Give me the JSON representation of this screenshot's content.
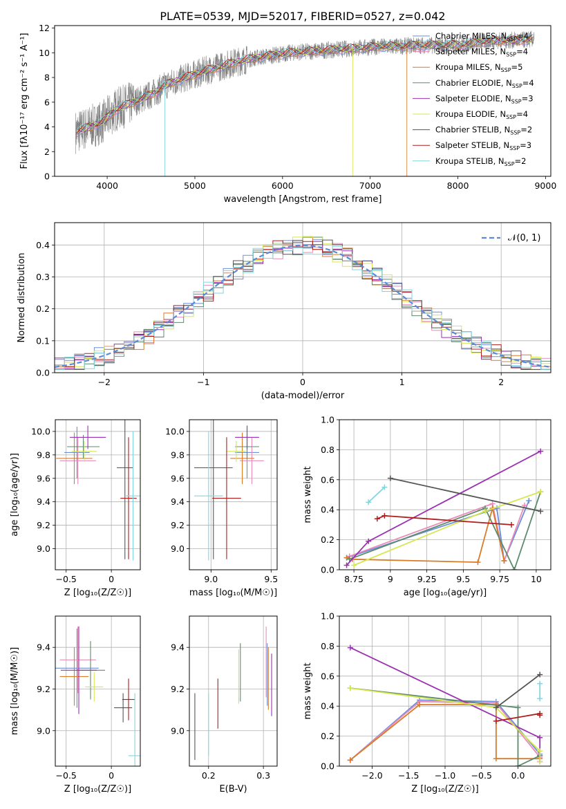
{
  "figure_title": "PLATE=0539, MJD=52017, FIBERID=0527, z=0.042",
  "colors": {
    "chabrier_miles": "#6a8edb",
    "salpeter_miles": "#e98ab8",
    "kroupa_miles": "#d87c28",
    "chabrier_elodie": "#5d8a6c",
    "salpeter_elodie": "#9a31b0",
    "kroupa_elodie": "#d6e74e",
    "chabrier_stelib": "#555555",
    "salpeter_stelib": "#b01c1c",
    "kroupa_stelib": "#7fd6e0",
    "data": "#808080",
    "normal_curve": "#5b8ad6"
  },
  "chart_data": [
    {
      "id": "spectrum",
      "type": "line",
      "xlabel": "wavelength [Angstrom, rest frame]",
      "ylabel": "Flux [fλ10⁻¹⁷ erg cm⁻² s⁻¹ A⁻¹]",
      "xlim": [
        3400,
        9060
      ],
      "ylim": [
        0,
        12.2
      ],
      "xticks": [
        4000,
        5000,
        6000,
        7000,
        8000,
        9000
      ],
      "yticks": [
        0,
        2,
        4,
        6,
        8,
        10,
        12
      ],
      "grid": false,
      "legend_position": "top-right",
      "series": [
        {
          "name": "Chabrier MILES, N",
          "sub": "SSP",
          "suffix": "=4",
          "color": "chabrier_miles"
        },
        {
          "name": "Salpeter MILES, N",
          "sub": "SSP",
          "suffix": "=4",
          "color": "salpeter_miles"
        },
        {
          "name": "Kroupa MILES, N",
          "sub": "SSP",
          "suffix": "=5",
          "color": "kroupa_miles"
        },
        {
          "name": "Chabrier ELODIE, N",
          "sub": "SSP",
          "suffix": "=4",
          "color": "chabrier_elodie"
        },
        {
          "name": "Salpeter ELODIE, N",
          "sub": "SSP",
          "suffix": "=3",
          "color": "salpeter_elodie"
        },
        {
          "name": "Kroupa ELODIE, N",
          "sub": "SSP",
          "suffix": "=4",
          "color": "kroupa_elodie"
        },
        {
          "name": "Chabrier STELIB, N",
          "sub": "SSP",
          "suffix": "=2",
          "color": "chabrier_stelib"
        },
        {
          "name": "Salpeter STELIB, N",
          "sub": "SSP",
          "suffix": "=3",
          "color": "salpeter_stelib"
        },
        {
          "name": "Kroupa STELIB, N",
          "sub": "SSP",
          "suffix": "=2",
          "color": "kroupa_stelib"
        }
      ],
      "continuum_model": {
        "x": [
          3650,
          3800,
          3950,
          4100,
          4300,
          4500,
          4700,
          4900,
          5100,
          5300,
          5500,
          5700,
          5900,
          6100,
          6300,
          6500,
          6700,
          6900,
          7100,
          7300,
          7500,
          7700,
          7900,
          8100,
          8300,
          8500,
          8700,
          8850
        ],
        "y": [
          3.6,
          4.0,
          4.4,
          5.4,
          6.0,
          6.6,
          7.5,
          8.0,
          8.5,
          8.9,
          9.3,
          9.6,
          9.8,
          10.0,
          10.1,
          10.2,
          10.3,
          10.4,
          10.5,
          10.5,
          10.6,
          10.6,
          10.6,
          10.7,
          10.9,
          11.0,
          11.0,
          11.1
        ]
      },
      "model_dropouts": [
        {
          "series": "kroupa_stelib",
          "x": 4660
        },
        {
          "series": "kroupa_elodie",
          "x": 6800
        },
        {
          "series": "kroupa_miles",
          "x": 7420
        }
      ]
    },
    {
      "id": "residuals",
      "type": "line",
      "xlabel": "(data-model)/error",
      "ylabel": "Normed distribution",
      "xlim": [
        -2.5,
        2.5
      ],
      "ylim": [
        0,
        0.47
      ],
      "xticks": [
        -2,
        -1,
        0,
        1,
        2
      ],
      "yticks": [
        0.0,
        0.1,
        0.2,
        0.3,
        0.4
      ],
      "grid": true,
      "legend_position": "top-right",
      "legend_label": "𝒩(0, 1)",
      "bin_width": 0.1
    },
    {
      "id": "z_vs_age",
      "type": "scatter",
      "xlabel": "Z [log₁₀(Z/Z☉)]",
      "ylabel": "age  [log₁₀(age/yr)]",
      "xlim": [
        -0.62,
        0.32
      ],
      "ylim": [
        8.82,
        10.1
      ],
      "xticks": [
        -0.5,
        0.0
      ],
      "yticks": [
        9.0,
        9.2,
        9.4,
        9.6,
        9.8,
        10.0
      ],
      "grid": true,
      "points": [
        {
          "series": "chabrier_miles",
          "x": -0.38,
          "xerr": 0.14,
          "y": 9.82,
          "yerr": 0.22
        },
        {
          "series": "salpeter_miles",
          "x": -0.37,
          "xerr": 0.2,
          "y": 9.75,
          "yerr": 0.2
        },
        {
          "series": "kroupa_miles",
          "x": -0.41,
          "xerr": 0.2,
          "y": 9.77,
          "yerr": 0.22
        },
        {
          "series": "chabrier_elodie",
          "x": -0.31,
          "xerr": 0.18,
          "y": 9.87,
          "yerr": 0.1
        },
        {
          "series": "salpeter_elodie",
          "x": -0.26,
          "xerr": 0.2,
          "y": 9.95,
          "yerr": 0.1
        },
        {
          "series": "kroupa_elodie",
          "x": -0.3,
          "xerr": 0.14,
          "y": 9.83,
          "yerr": 0.09
        },
        {
          "series": "chabrier_stelib",
          "x": 0.15,
          "xerr": 0.09,
          "y": 9.69,
          "yerr": 0.78
        },
        {
          "series": "salpeter_stelib",
          "x": 0.19,
          "xerr": 0.09,
          "y": 9.43,
          "yerr": 0.52
        },
        {
          "series": "kroupa_stelib",
          "x": 0.24,
          "xerr": 0.09,
          "y": 9.45,
          "yerr": 0.55
        }
      ]
    },
    {
      "id": "mass_vs_age",
      "type": "scatter",
      "xlabel": "mass [log₁₀(M/M☉)]",
      "ylabel": "",
      "xlim": [
        8.82,
        9.55
      ],
      "ylim": [
        8.82,
        10.1
      ],
      "xticks": [
        9.0,
        9.5
      ],
      "yticks": [
        9.0,
        9.2,
        9.4,
        9.6,
        9.8,
        10.0
      ],
      "grid": true,
      "points": [
        {
          "series": "chabrier_miles",
          "x": 9.3,
          "xerr": 0.1,
          "y": 9.82,
          "yerr": 0.22
        },
        {
          "series": "salpeter_miles",
          "x": 9.34,
          "xerr": 0.1,
          "y": 9.75,
          "yerr": 0.2
        },
        {
          "series": "kroupa_miles",
          "x": 9.26,
          "xerr": 0.1,
          "y": 9.77,
          "yerr": 0.22
        },
        {
          "series": "chabrier_elodie",
          "x": 9.3,
          "xerr": 0.1,
          "y": 9.87,
          "yerr": 0.1
        },
        {
          "series": "salpeter_elodie",
          "x": 9.3,
          "xerr": 0.1,
          "y": 9.95,
          "yerr": 0.1
        },
        {
          "series": "kroupa_elodie",
          "x": 9.21,
          "xerr": 0.08,
          "y": 9.83,
          "yerr": 0.09
        },
        {
          "series": "chabrier_stelib",
          "x": 9.02,
          "xerr": 0.16,
          "y": 9.69,
          "yerr": 0.78
        },
        {
          "series": "salpeter_stelib",
          "x": 9.13,
          "xerr": 0.12,
          "y": 9.43,
          "yerr": 0.52
        },
        {
          "series": "kroupa_stelib",
          "x": 8.98,
          "xerr": 0.12,
          "y": 9.45,
          "yerr": 0.55
        }
      ]
    },
    {
      "id": "age_vs_weight",
      "type": "line",
      "xlabel": "age  [log₁₀(age/yr)]",
      "ylabel": "mass weight",
      "xlim": [
        8.65,
        10.1
      ],
      "ylim": [
        0,
        1.0
      ],
      "xticks": [
        8.75,
        9.0,
        9.25,
        9.5,
        9.75,
        10.0
      ],
      "yticks": [
        0.0,
        0.2,
        0.4,
        0.6,
        0.8,
        1.0
      ],
      "grid": true,
      "series": [
        {
          "color": "chabrier_miles",
          "x": [
            8.7,
            9.73,
            9.78,
            9.95
          ],
          "y": [
            0.08,
            0.41,
            0.06,
            0.46
          ]
        },
        {
          "color": "salpeter_miles",
          "x": [
            8.72,
            9.7,
            9.78,
            9.92
          ],
          "y": [
            0.09,
            0.44,
            0.06,
            0.43
          ]
        },
        {
          "color": "kroupa_miles",
          "x": [
            8.7,
            8.74,
            9.6,
            9.7,
            9.78
          ],
          "y": [
            0.08,
            0.07,
            0.05,
            0.41,
            0.06
          ]
        },
        {
          "color": "chabrier_elodie",
          "x": [
            8.72,
            9.65,
            9.85,
            10.03
          ],
          "y": [
            0.07,
            0.41,
            0.0,
            0.52
          ]
        },
        {
          "color": "salpeter_elodie",
          "x": [
            8.7,
            8.85,
            10.03
          ],
          "y": [
            0.03,
            0.19,
            0.79
          ]
        },
        {
          "color": "kroupa_elodie",
          "x": [
            8.75,
            9.65,
            10.03
          ],
          "y": [
            0.03,
            0.39,
            0.52
          ]
        },
        {
          "color": "chabrier_stelib",
          "x": [
            9.0,
            10.03
          ],
          "y": [
            0.61,
            0.39
          ]
        },
        {
          "color": "salpeter_stelib",
          "x": [
            8.91,
            8.96,
            9.83
          ],
          "y": [
            0.34,
            0.36,
            0.3
          ]
        },
        {
          "color": "kroupa_stelib",
          "x": [
            8.85,
            8.96
          ],
          "y": [
            0.45,
            0.55
          ]
        }
      ]
    },
    {
      "id": "z_vs_mass",
      "type": "scatter",
      "xlabel": "Z [log₁₀(Z/Z☉)]",
      "ylabel": "mass [log₁₀(M/M☉)]",
      "xlim": [
        -0.62,
        0.32
      ],
      "ylim": [
        8.83,
        9.55
      ],
      "xticks": [
        -0.5,
        0.0
      ],
      "yticks": [
        9.0,
        9.2,
        9.4
      ],
      "grid": true,
      "points": [
        {
          "series": "chabrier_miles",
          "x": -0.38,
          "xerr": 0.24,
          "y": 9.3,
          "yerr": 0.19
        },
        {
          "series": "salpeter_miles",
          "x": -0.37,
          "xerr": 0.2,
          "y": 9.34,
          "yerr": 0.16
        },
        {
          "series": "kroupa_miles",
          "x": -0.41,
          "xerr": 0.16,
          "y": 9.26,
          "yerr": 0.14
        },
        {
          "series": "chabrier_elodie",
          "x": -0.23,
          "xerr": 0.16,
          "y": 9.29,
          "yerr": 0.14
        },
        {
          "series": "salpeter_elodie",
          "x": -0.36,
          "xerr": 0.2,
          "y": 9.29,
          "yerr": 0.21
        },
        {
          "series": "kroupa_elodie",
          "x": -0.19,
          "xerr": 0.1,
          "y": 9.21,
          "yerr": 0.07
        },
        {
          "series": "chabrier_stelib",
          "x": 0.13,
          "xerr": 0.1,
          "y": 9.11,
          "yerr": 0.07
        },
        {
          "series": "salpeter_stelib",
          "x": 0.19,
          "xerr": 0.07,
          "y": 9.15,
          "yerr": 0.1
        },
        {
          "series": "kroupa_stelib",
          "x": 0.26,
          "xerr": 0.07,
          "y": 8.88,
          "yerr": 0.3
        }
      ]
    },
    {
      "id": "ebv_vs_mass",
      "type": "scatter",
      "xlabel": "E(B-V)",
      "ylabel": "",
      "xlim": [
        0.165,
        0.325
      ],
      "ylim": [
        8.83,
        9.55
      ],
      "xticks": [
        0.2,
        0.3
      ],
      "yticks": [
        9.0,
        9.2,
        9.4
      ],
      "grid": true,
      "points": [
        {
          "series": "chabrier_stelib",
          "x": 0.175,
          "y": 9.02,
          "yerr": 0.16
        },
        {
          "series": "kroupa_stelib",
          "x": 0.2,
          "y": 9.03,
          "yerr": 0.15
        },
        {
          "series": "salpeter_stelib",
          "x": 0.217,
          "y": 9.13,
          "yerr": 0.12
        },
        {
          "series": "kroupa_elodie",
          "x": 0.255,
          "y": 9.26,
          "yerr": 0.13
        },
        {
          "series": "chabrier_elodie",
          "x": 0.258,
          "y": 9.28,
          "yerr": 0.14
        },
        {
          "series": "salpeter_miles",
          "x": 0.305,
          "y": 9.33,
          "yerr": 0.17
        },
        {
          "series": "chabrier_miles",
          "x": 0.307,
          "y": 9.27,
          "yerr": 0.15
        },
        {
          "series": "kroupa_miles",
          "x": 0.309,
          "y": 9.25,
          "yerr": 0.15
        },
        {
          "series": "salpeter_elodie",
          "x": 0.315,
          "y": 9.22,
          "yerr": 0.15
        }
      ]
    },
    {
      "id": "z_vs_weight",
      "type": "line",
      "xlabel": "Z [log₁₀(Z/Z☉)]",
      "ylabel": "mass weight",
      "xlim": [
        -2.45,
        0.45
      ],
      "ylim": [
        0,
        1.0
      ],
      "xticks": [
        -2.0,
        -1.5,
        -1.0,
        -0.5,
        0.0
      ],
      "yticks": [
        0.0,
        0.2,
        0.4,
        0.6,
        0.8,
        1.0
      ],
      "grid": true,
      "series": [
        {
          "color": "chabrier_miles",
          "x": [
            -2.3,
            -1.35,
            -0.3,
            0.3
          ],
          "y": [
            0.04,
            0.44,
            0.43,
            0.08
          ]
        },
        {
          "color": "salpeter_miles",
          "x": [
            -2.3,
            -1.35,
            -0.3,
            0.3
          ],
          "y": [
            0.04,
            0.43,
            0.42,
            0.06
          ]
        },
        {
          "color": "kroupa_miles",
          "x": [
            -2.3,
            -1.35,
            -0.3,
            -0.3,
            0.3,
            0.3
          ],
          "y": [
            0.04,
            0.41,
            0.41,
            0.05,
            0.05,
            0.07
          ]
        },
        {
          "color": "chabrier_elodie",
          "x": [
            -2.3,
            0.0,
            0.0,
            0.3
          ],
          "y": [
            0.52,
            0.39,
            0.0,
            0.07
          ]
        },
        {
          "color": "salpeter_elodie",
          "x": [
            -2.3,
            0.3,
            0.3
          ],
          "y": [
            0.79,
            0.19,
            0.03
          ]
        },
        {
          "color": "kroupa_elodie",
          "x": [
            -2.3,
            -0.3,
            0.3,
            0.3
          ],
          "y": [
            0.52,
            0.39,
            0.1,
            0.03
          ]
        },
        {
          "color": "chabrier_stelib",
          "x": [
            -0.3,
            0.3
          ],
          "y": [
            0.39,
            0.61
          ]
        },
        {
          "color": "salpeter_stelib",
          "x": [
            -0.3,
            0.3,
            0.3
          ],
          "y": [
            0.3,
            0.35,
            0.34
          ]
        },
        {
          "color": "kroupa_stelib",
          "x": [
            0.3,
            0.3
          ],
          "y": [
            0.55,
            0.45
          ]
        }
      ]
    }
  ]
}
